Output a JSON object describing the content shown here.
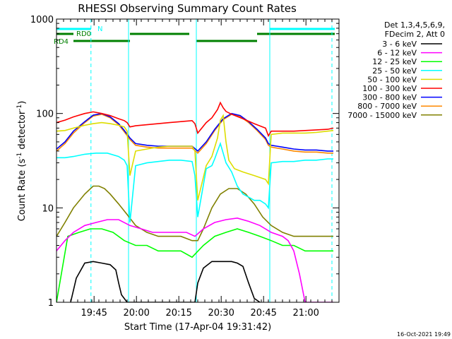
{
  "chart_data": {
    "type": "line",
    "title": "RHESSI Observing Summary Count Rates",
    "xlabel": "Start Time (17-Apr-04 19:31:42)",
    "ylabel_main": "Count Rate (s",
    "ylabel_sup1": "-1",
    "ylabel_mid": " detector",
    "ylabel_sup2": "-1",
    "ylabel_end": ")",
    "yscale": "log",
    "ylim": [
      1,
      1000
    ],
    "xlim_minutes": [
      0,
      100
    ],
    "y_ticks": [
      {
        "value": 1,
        "label": "1"
      },
      {
        "value": 10,
        "label": "10"
      },
      {
        "value": 100,
        "label": "100"
      },
      {
        "value": 1000,
        "label": "1000"
      }
    ],
    "x_ticks": [
      {
        "minute": 13.3,
        "label": "19:45"
      },
      {
        "minute": 28.3,
        "label": "20:00"
      },
      {
        "minute": 43.3,
        "label": "20:15"
      },
      {
        "minute": 58.3,
        "label": "20:30"
      },
      {
        "minute": 73.3,
        "label": "20:45"
      },
      {
        "minute": 88.3,
        "label": "21:00"
      }
    ],
    "legend": {
      "header": [
        "Det 1,3,4,5,6,9,",
        "FDecim 2, Att 0"
      ],
      "placement": "right"
    },
    "series": [
      {
        "name": "3 - 6 keV",
        "color": "#000000",
        "x": [
          5,
          7,
          10,
          13,
          16,
          19,
          21,
          22,
          23,
          25,
          26,
          27,
          49,
          50,
          52,
          55,
          58,
          62,
          64,
          66,
          68,
          70,
          72
        ],
        "y": [
          1.0,
          1.8,
          2.6,
          2.7,
          2.6,
          2.5,
          2.2,
          1.6,
          1.2,
          1.0,
          1.0,
          1.0,
          1.0,
          1.6,
          2.3,
          2.7,
          2.7,
          2.7,
          2.6,
          2.4,
          1.6,
          1.1,
          1.0
        ]
      },
      {
        "name": "6 - 12 keV",
        "color": "#ff00ff",
        "x": [
          0,
          3,
          6,
          10,
          14,
          18,
          22,
          26,
          30,
          34,
          38,
          42,
          46,
          49,
          52,
          56,
          60,
          64,
          68,
          72,
          76,
          80,
          82,
          84,
          86,
          88,
          90,
          92,
          94,
          96,
          98
        ],
        "y": [
          3.5,
          4.5,
          5.5,
          6.5,
          7.0,
          7.5,
          7.5,
          6.5,
          6.0,
          5.5,
          5.5,
          5.5,
          5.5,
          5.0,
          6.0,
          7.0,
          7.5,
          7.8,
          7.2,
          6.5,
          5.5,
          5.0,
          4.5,
          3.5,
          2.0,
          1.0,
          1.0,
          1.0,
          1.0,
          1.0,
          1.0
        ]
      },
      {
        "name": "12 - 25 keV",
        "color": "#00ff00",
        "x": [
          0,
          4,
          8,
          12,
          16,
          20,
          24,
          28,
          32,
          36,
          40,
          44,
          48,
          52,
          56,
          60,
          64,
          68,
          72,
          76,
          80,
          84,
          88,
          92,
          96,
          98
        ],
        "y": [
          1.0,
          5.0,
          5.5,
          6.0,
          6.0,
          5.5,
          4.5,
          4.0,
          4.0,
          3.5,
          3.5,
          3.5,
          3.0,
          4.0,
          5.0,
          5.5,
          6.0,
          5.5,
          5.0,
          4.5,
          4.0,
          4.0,
          3.5,
          3.5,
          3.5,
          3.5
        ]
      },
      {
        "name": "25 - 50 keV",
        "color": "#00ffff",
        "x": [
          0,
          3,
          6,
          10,
          14,
          18,
          22,
          24,
          25,
          26,
          28,
          32,
          36,
          40,
          44,
          48,
          49,
          50,
          53,
          55,
          56,
          57,
          58,
          59,
          60,
          62,
          64,
          66,
          68,
          70,
          72,
          74,
          75,
          76,
          80,
          84,
          88,
          92,
          96,
          98
        ],
        "y": [
          34,
          34,
          35,
          37,
          38,
          38,
          35,
          32,
          28,
          7.0,
          28,
          30,
          31,
          32,
          32,
          31,
          22,
          8.0,
          26,
          28,
          33,
          40,
          48,
          38,
          30,
          24,
          17,
          14,
          13,
          12,
          12,
          11,
          10,
          30,
          31,
          31,
          32,
          32,
          33,
          33
        ]
      },
      {
        "name": "50 - 100 keV",
        "color": "#dddd00",
        "x": [
          0,
          3,
          6,
          10,
          13,
          16,
          19,
          22,
          24,
          25,
          26,
          28,
          32,
          36,
          40,
          44,
          48,
          49,
          50,
          53,
          55,
          57,
          58,
          59,
          60,
          61,
          63,
          66,
          70,
          74,
          75,
          76,
          80,
          84,
          88,
          92,
          96,
          98
        ],
        "y": [
          65,
          66,
          70,
          75,
          78,
          80,
          78,
          75,
          72,
          65,
          22,
          40,
          42,
          44,
          45,
          45,
          45,
          40,
          12,
          28,
          35,
          55,
          85,
          95,
          50,
          32,
          26,
          24,
          22,
          20,
          18,
          60,
          62,
          62,
          62,
          63,
          65,
          66
        ]
      },
      {
        "name": "100 - 300 keV",
        "color": "#ff0000",
        "x": [
          0,
          3,
          6,
          10,
          13,
          16,
          19,
          22,
          24,
          25,
          26,
          28,
          32,
          36,
          40,
          44,
          48,
          49,
          50,
          53,
          55,
          57,
          58,
          59,
          60,
          62,
          66,
          70,
          74,
          75,
          76,
          80,
          84,
          88,
          92,
          96,
          98
        ],
        "y": [
          80,
          85,
          92,
          100,
          104,
          100,
          95,
          88,
          84,
          80,
          72,
          74,
          76,
          78,
          80,
          82,
          84,
          78,
          62,
          80,
          90,
          110,
          130,
          115,
          105,
          98,
          88,
          78,
          70,
          58,
          65,
          65,
          65,
          66,
          67,
          68,
          70
        ]
      },
      {
        "name": "300 - 800 keV",
        "color": "#0000ff",
        "x": [
          0,
          3,
          6,
          10,
          13,
          16,
          19,
          22,
          24,
          26,
          28,
          32,
          36,
          40,
          44,
          48,
          50,
          53,
          56,
          59,
          62,
          65,
          68,
          71,
          74,
          75,
          76,
          78,
          80,
          84,
          88,
          92,
          96,
          98
        ],
        "y": [
          42,
          50,
          65,
          82,
          96,
          100,
          92,
          78,
          66,
          55,
          48,
          46,
          45,
          45,
          45,
          45,
          40,
          50,
          68,
          88,
          100,
          95,
          82,
          68,
          55,
          48,
          46,
          45,
          44,
          42,
          41,
          41,
          40,
          40
        ]
      },
      {
        "name": "800 - 7000 keV",
        "color": "#ff8800",
        "x": [
          0,
          3,
          6,
          10,
          13,
          16,
          19,
          22,
          24,
          26,
          28,
          32,
          36,
          40,
          44,
          48,
          50,
          53,
          56,
          59,
          62,
          65,
          68,
          71,
          74,
          75,
          76,
          78,
          80,
          84,
          88,
          92,
          96,
          98
        ],
        "y": [
          40,
          48,
          62,
          80,
          94,
          98,
          90,
          76,
          64,
          53,
          46,
          44,
          43,
          43,
          43,
          43,
          38,
          48,
          66,
          86,
          98,
          93,
          80,
          66,
          53,
          46,
          44,
          43,
          42,
          40,
          39,
          39,
          38,
          38
        ]
      },
      {
        "name": "7000 - 15000 keV",
        "color": "#808000",
        "x": [
          0,
          3,
          6,
          10,
          13,
          15,
          17,
          19,
          22,
          25,
          28,
          32,
          36,
          40,
          44,
          48,
          50,
          52,
          55,
          58,
          61,
          64,
          67,
          70,
          73,
          76,
          80,
          84,
          88,
          92,
          96,
          98
        ],
        "y": [
          5.0,
          7.0,
          10,
          14,
          17,
          17,
          16,
          14,
          11,
          8.5,
          6.5,
          5.5,
          5.0,
          5.0,
          5.0,
          4.5,
          4.5,
          6.0,
          10,
          14,
          16,
          16,
          14,
          11,
          8.0,
          6.5,
          5.5,
          5.0,
          5.0,
          5.0,
          5.0,
          5.0
        ]
      }
    ],
    "vlines": [
      {
        "minute": 12.2,
        "color": "#00ffff",
        "style": "dashed"
      },
      {
        "minute": 25.5,
        "color": "#00ffff",
        "style": "solid"
      },
      {
        "minute": 49.5,
        "color": "#00ffff",
        "style": "solid"
      },
      {
        "minute": 75.5,
        "color": "#00ffff",
        "style": "solid"
      },
      {
        "minute": 97.5,
        "color": "#00ffff",
        "style": "dashed"
      }
    ],
    "status_bars": [
      {
        "label": "N",
        "color": "#00ffff",
        "segments": [
          [
            0,
            12.2
          ],
          [
            75.5,
            98.5
          ]
        ],
        "row": 0
      },
      {
        "label": "RD0",
        "color": "#008000",
        "segments": [
          [
            0,
            6
          ],
          [
            26,
            47
          ],
          [
            71,
            98.5
          ]
        ],
        "row": 1
      },
      {
        "label": "RD4",
        "color": "#008000",
        "segments": [
          [
            6,
            26
          ],
          [
            49.5,
            71
          ]
        ],
        "row": 2
      }
    ]
  },
  "footer": {
    "timestamp": "16-Oct-2021 19:49"
  }
}
